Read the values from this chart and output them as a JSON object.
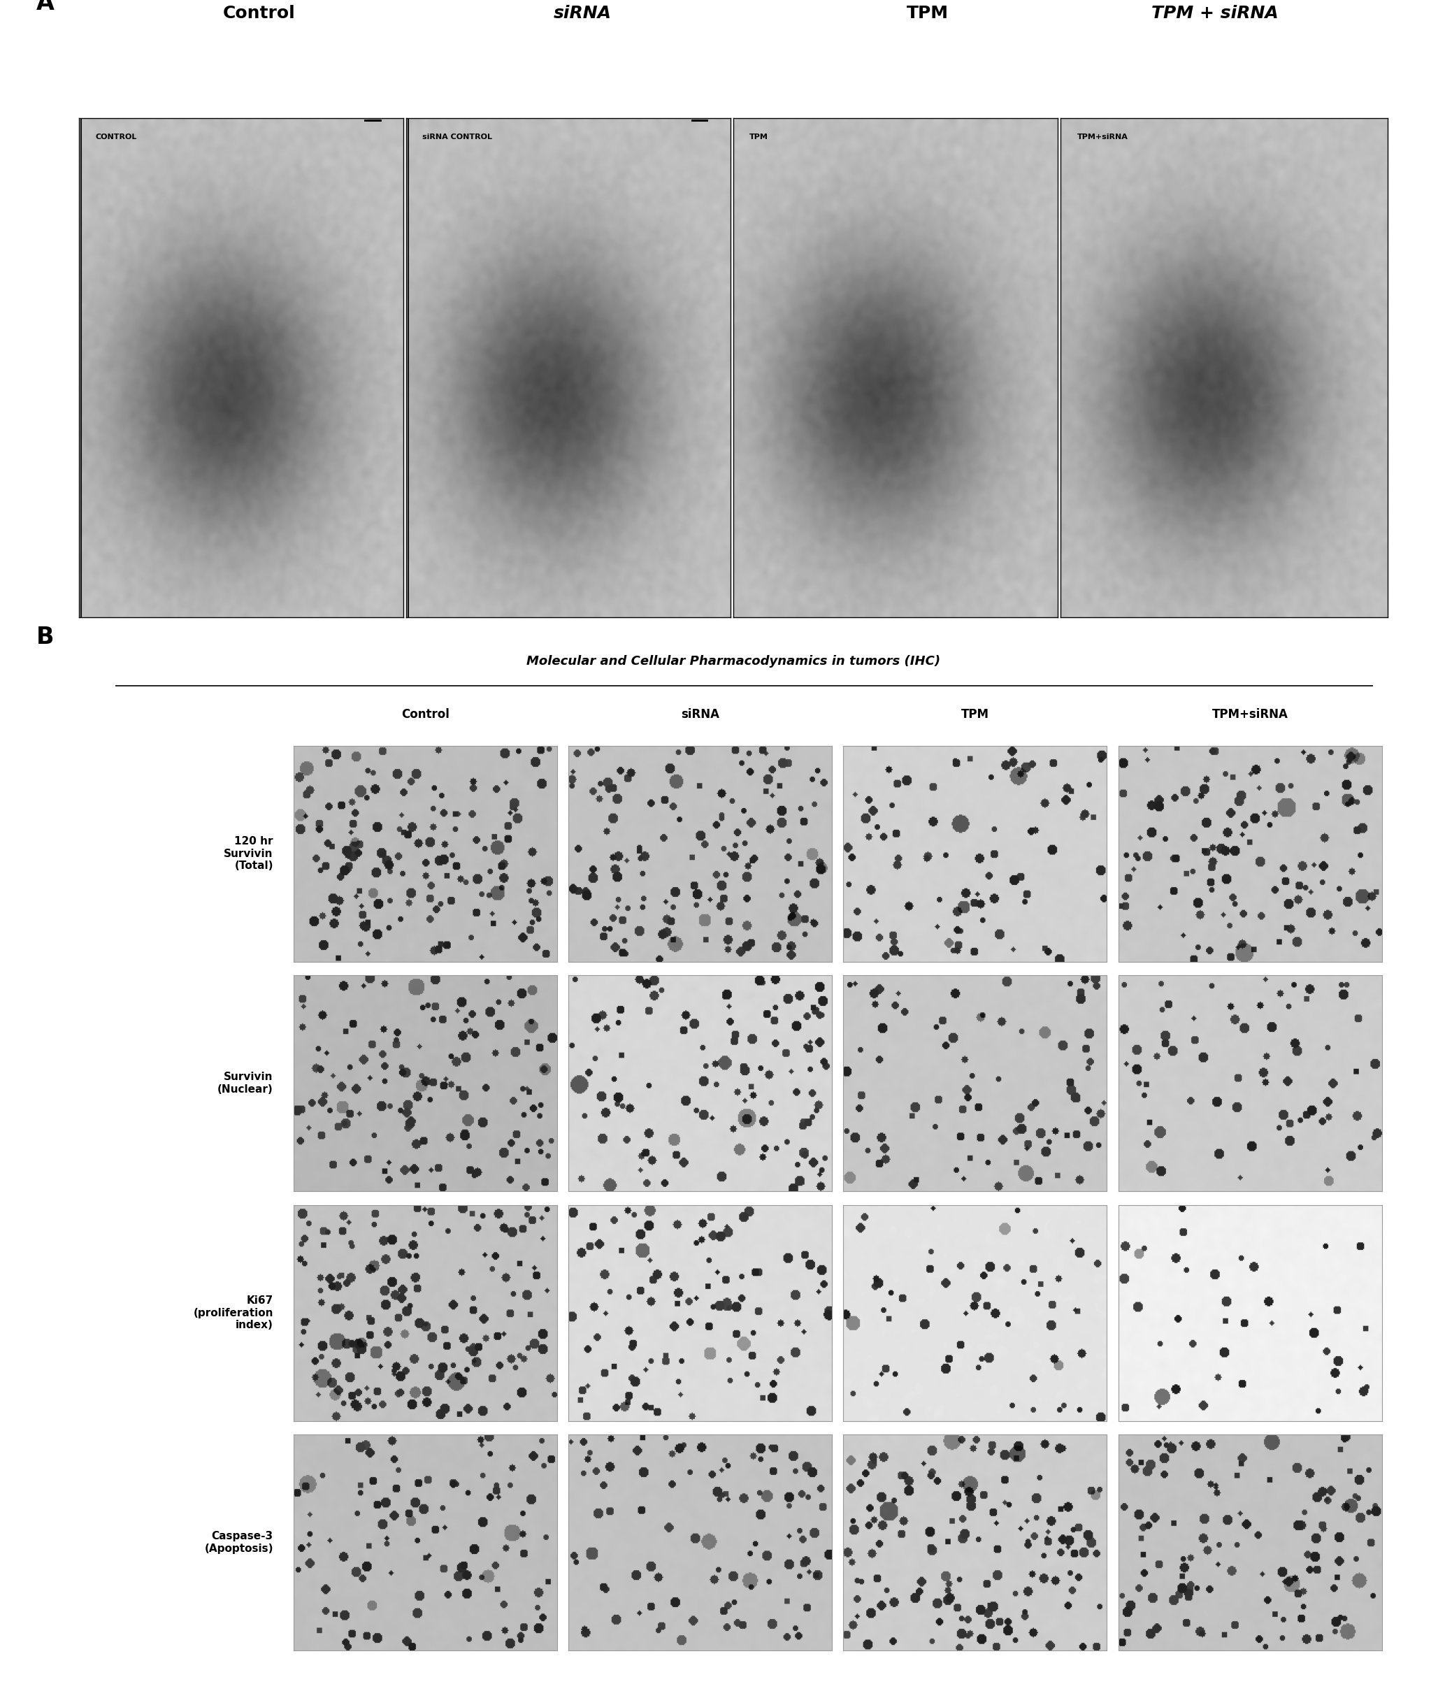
{
  "panel_a_label": "A",
  "panel_b_label": "B",
  "panel_a_col_labels": [
    "Control",
    "siRNA",
    "TPM",
    "TPM + siRNA"
  ],
  "panel_a_image_labels": [
    "CONTROL",
    "siRNA CONTROL",
    "TPM",
    "TPM+siRNA"
  ],
  "panel_b_title": "Molecular and Cellular Pharmacodynamics in tumors (IHC)",
  "panel_b_col_labels": [
    "Control",
    "siRNA",
    "TPM",
    "TPM+siRNA"
  ],
  "panel_b_row_labels": [
    "120 hr\nSurvivin\n(Total)",
    "Survivin\n(Nuclear)",
    "Ki67\n(proliferation\nindex)",
    "Caspase-3\n(Apoptosis)"
  ],
  "bg_color": "#ffffff",
  "text_color": "#000000",
  "panel_a_label_fontsize": 24,
  "panel_a_col_fontsize": 18,
  "panel_b_label_fontsize": 24,
  "panel_b_title_fontsize": 13,
  "panel_b_col_fontsize": 12,
  "panel_b_row_fontsize": 11,
  "image_label_fontsize": 8,
  "figure_width": 20.57,
  "figure_height": 24.19
}
